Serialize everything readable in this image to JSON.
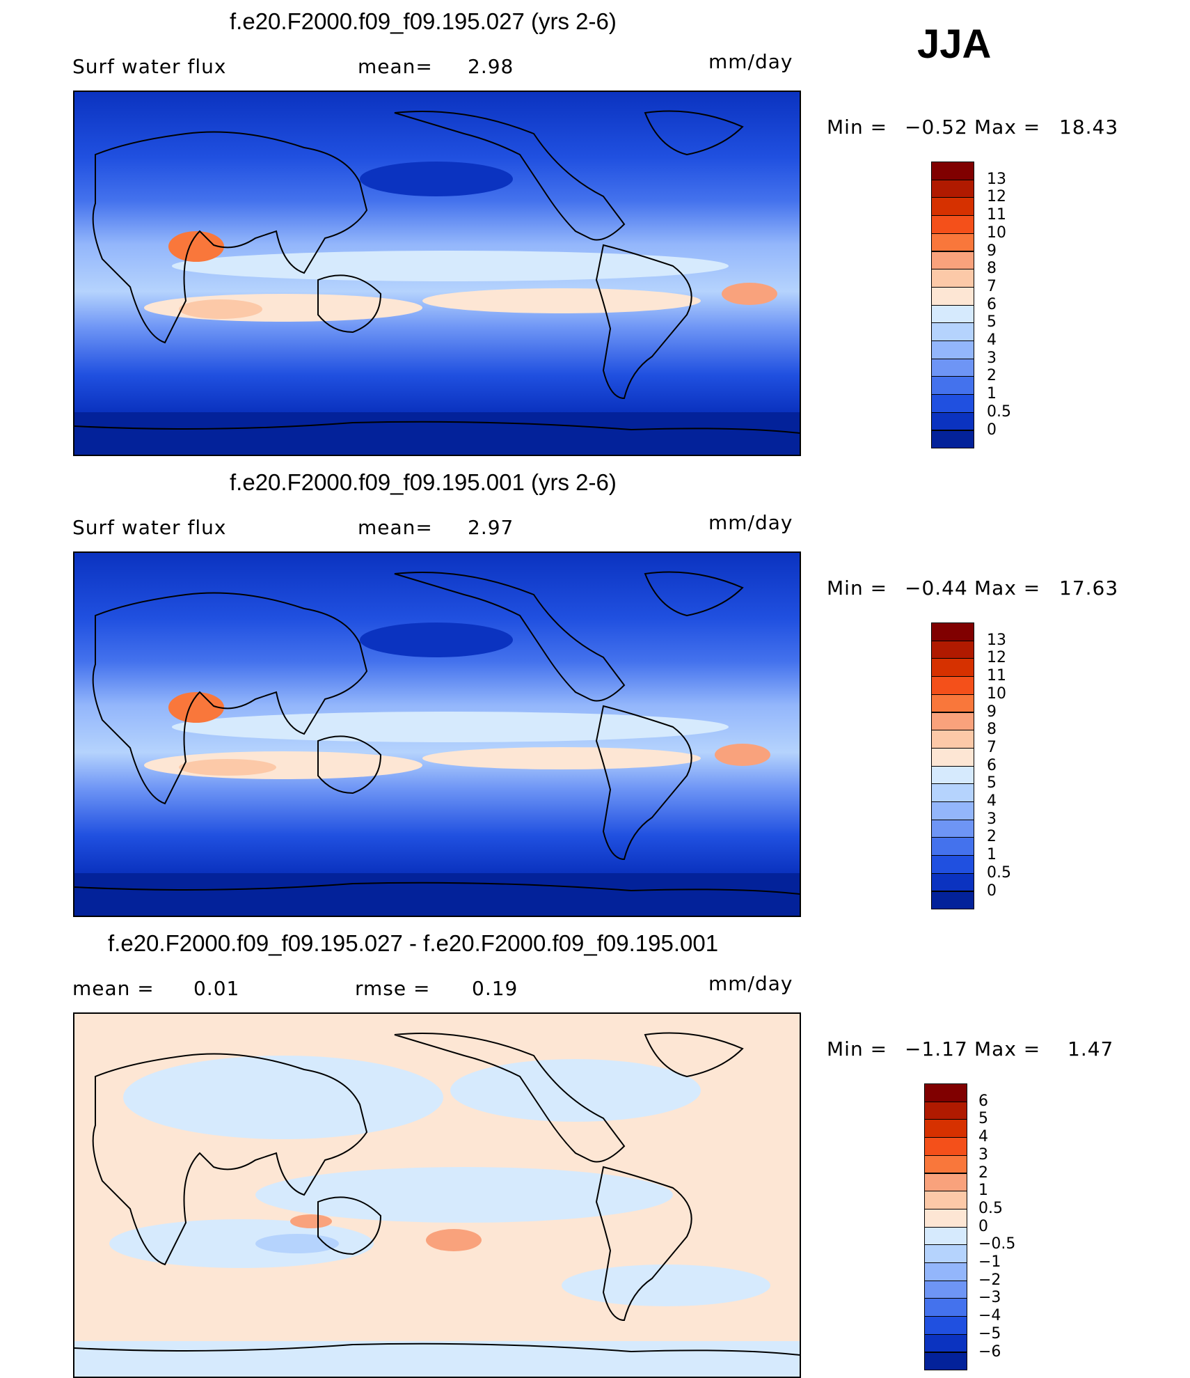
{
  "season": "JJA",
  "panels": [
    {
      "id": "p1",
      "title": "f.e20.F2000.f09_f09.195.027 (yrs 2-6)",
      "left_label": "Surf water flux",
      "mid_label": "mean=",
      "mid_value": "2.98",
      "units": "mm/day",
      "min_label": "Min =",
      "min_value": "−0.52",
      "max_label": "Max =",
      "max_value": "18.43",
      "colorbar_ticks": [
        "13",
        "12",
        "11",
        "10",
        "9",
        "8",
        "7",
        "6",
        "5",
        "4",
        "3",
        "2",
        "1",
        "0.5",
        "0"
      ],
      "colors": [
        "#800000",
        "#b01a00",
        "#d63100",
        "#f4501a",
        "#f9773b",
        "#f9a27c",
        "#fcc9a8",
        "#fde6d4",
        "#d6eafd",
        "#b5d3fd",
        "#93b6fb",
        "#6e95f5",
        "#4472ed",
        "#2050e0",
        "#0b33c0",
        "#03229a"
      ]
    },
    {
      "id": "p2",
      "title": "f.e20.F2000.f09_f09.195.001 (yrs 2-6)",
      "left_label": "Surf water flux",
      "mid_label": "mean=",
      "mid_value": "2.97",
      "units": "mm/day",
      "min_label": "Min =",
      "min_value": "−0.44",
      "max_label": "Max =",
      "max_value": "17.63",
      "colorbar_ticks": [
        "13",
        "12",
        "11",
        "10",
        "9",
        "8",
        "7",
        "6",
        "5",
        "4",
        "3",
        "2",
        "1",
        "0.5",
        "0"
      ],
      "colors": [
        "#800000",
        "#b01a00",
        "#d63100",
        "#f4501a",
        "#f9773b",
        "#f9a27c",
        "#fcc9a8",
        "#fde6d4",
        "#d6eafd",
        "#b5d3fd",
        "#93b6fb",
        "#6e95f5",
        "#4472ed",
        "#2050e0",
        "#0b33c0",
        "#03229a"
      ]
    },
    {
      "id": "p3",
      "title": "f.e20.F2000.f09_f09.195.027 - f.e20.F2000.f09_f09.195.001",
      "left_label": "mean =",
      "left_value": "0.01",
      "mid_label": "rmse =",
      "mid_value": "0.19",
      "units": "mm/day",
      "min_label": "Min =",
      "min_value": "−1.17",
      "max_label": "Max =",
      "max_value": "1.47",
      "colorbar_ticks": [
        "6",
        "5",
        "4",
        "3",
        "2",
        "1",
        "0.5",
        "0",
        "−0.5",
        "−1",
        "−2",
        "−3",
        "−4",
        "−5",
        "−6"
      ],
      "colors": [
        "#800000",
        "#b01a00",
        "#d63100",
        "#f4501a",
        "#f9773b",
        "#f9a27c",
        "#fcc9a8",
        "#fde6d4",
        "#d6eafd",
        "#b5d3fd",
        "#93b6fb",
        "#6e95f5",
        "#4472ed",
        "#2050e0",
        "#0b33c0",
        "#03229a"
      ]
    }
  ],
  "chart_data": [
    {
      "type": "heatmap",
      "title": "f.e20.F2000.f09_f09.195.027 (yrs 2-6)",
      "variable": "Surf water flux",
      "units": "mm/day",
      "mean": 2.98,
      "min": -0.52,
      "max": 18.43,
      "levels": [
        0,
        0.5,
        1,
        2,
        3,
        4,
        5,
        6,
        7,
        8,
        9,
        10,
        11,
        12,
        13
      ],
      "season": "JJA"
    },
    {
      "type": "heatmap",
      "title": "f.e20.F2000.f09_f09.195.001 (yrs 2-6)",
      "variable": "Surf water flux",
      "units": "mm/day",
      "mean": 2.97,
      "min": -0.44,
      "max": 17.63,
      "levels": [
        0,
        0.5,
        1,
        2,
        3,
        4,
        5,
        6,
        7,
        8,
        9,
        10,
        11,
        12,
        13
      ],
      "season": "JJA"
    },
    {
      "type": "heatmap",
      "title": "f.e20.F2000.f09_f09.195.027 - f.e20.F2000.f09_f09.195.001",
      "units": "mm/day",
      "mean": 0.01,
      "rmse": 0.19,
      "min": -1.17,
      "max": 1.47,
      "levels": [
        -6,
        -5,
        -4,
        -3,
        -2,
        -1,
        -0.5,
        0,
        0.5,
        1,
        2,
        3,
        4,
        5,
        6
      ],
      "season": "JJA"
    }
  ]
}
